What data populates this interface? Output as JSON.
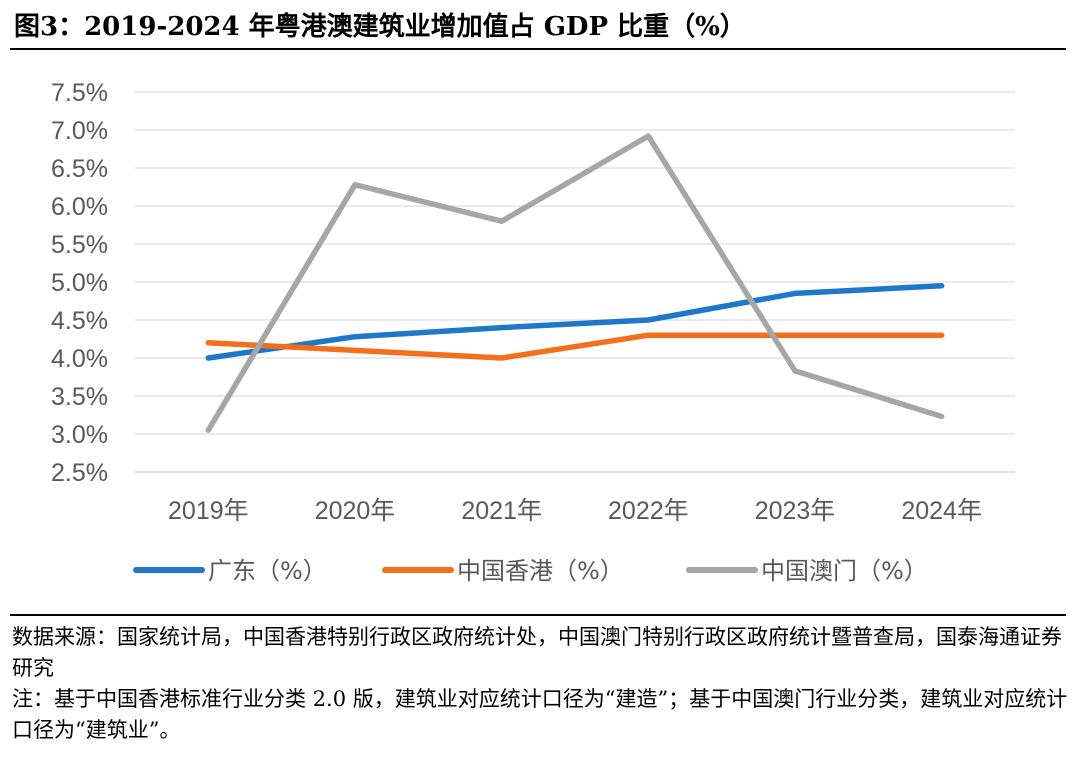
{
  "title": "图3：2019-2024 年粤港澳建筑业增加值占 GDP 比重（%）",
  "chart_data": {
    "type": "line",
    "title": "2019-2024 年粤港澳建筑业增加值占 GDP 比重（%）",
    "categories": [
      "2019年",
      "2020年",
      "2021年",
      "2022年",
      "2023年",
      "2024年"
    ],
    "y_ticks": [
      "2.5%",
      "3.0%",
      "3.5%",
      "4.0%",
      "4.5%",
      "5.0%",
      "5.5%",
      "6.0%",
      "6.5%",
      "7.0%",
      "7.5%"
    ],
    "ylim": [
      2.5,
      7.5
    ],
    "grid": true,
    "legend_position": "bottom",
    "series": [
      {
        "name": "广东（%）",
        "color": "#1f77c9",
        "values": [
          4.0,
          4.28,
          4.4,
          4.5,
          4.85,
          4.95
        ]
      },
      {
        "name": "中国香港（%）",
        "color": "#f26f1c",
        "values": [
          4.2,
          4.1,
          4.0,
          4.3,
          4.3,
          4.3
        ]
      },
      {
        "name": "中国澳门（%）",
        "color": "#a6a6a6",
        "values": [
          3.05,
          6.28,
          5.8,
          6.92,
          3.83,
          3.23
        ]
      }
    ]
  },
  "notes": {
    "source": "数据来源：国家统计局，中国香港特别行政区政府统计处，中国澳门特别行政区政府统计暨普查局，国泰海通证券研究",
    "note": "注：基于中国香港标准行业分类 2.0 版，建筑业对应统计口径为“建造”；基于中国澳门行业分类，建筑业对应统计口径为“建筑业”。"
  }
}
